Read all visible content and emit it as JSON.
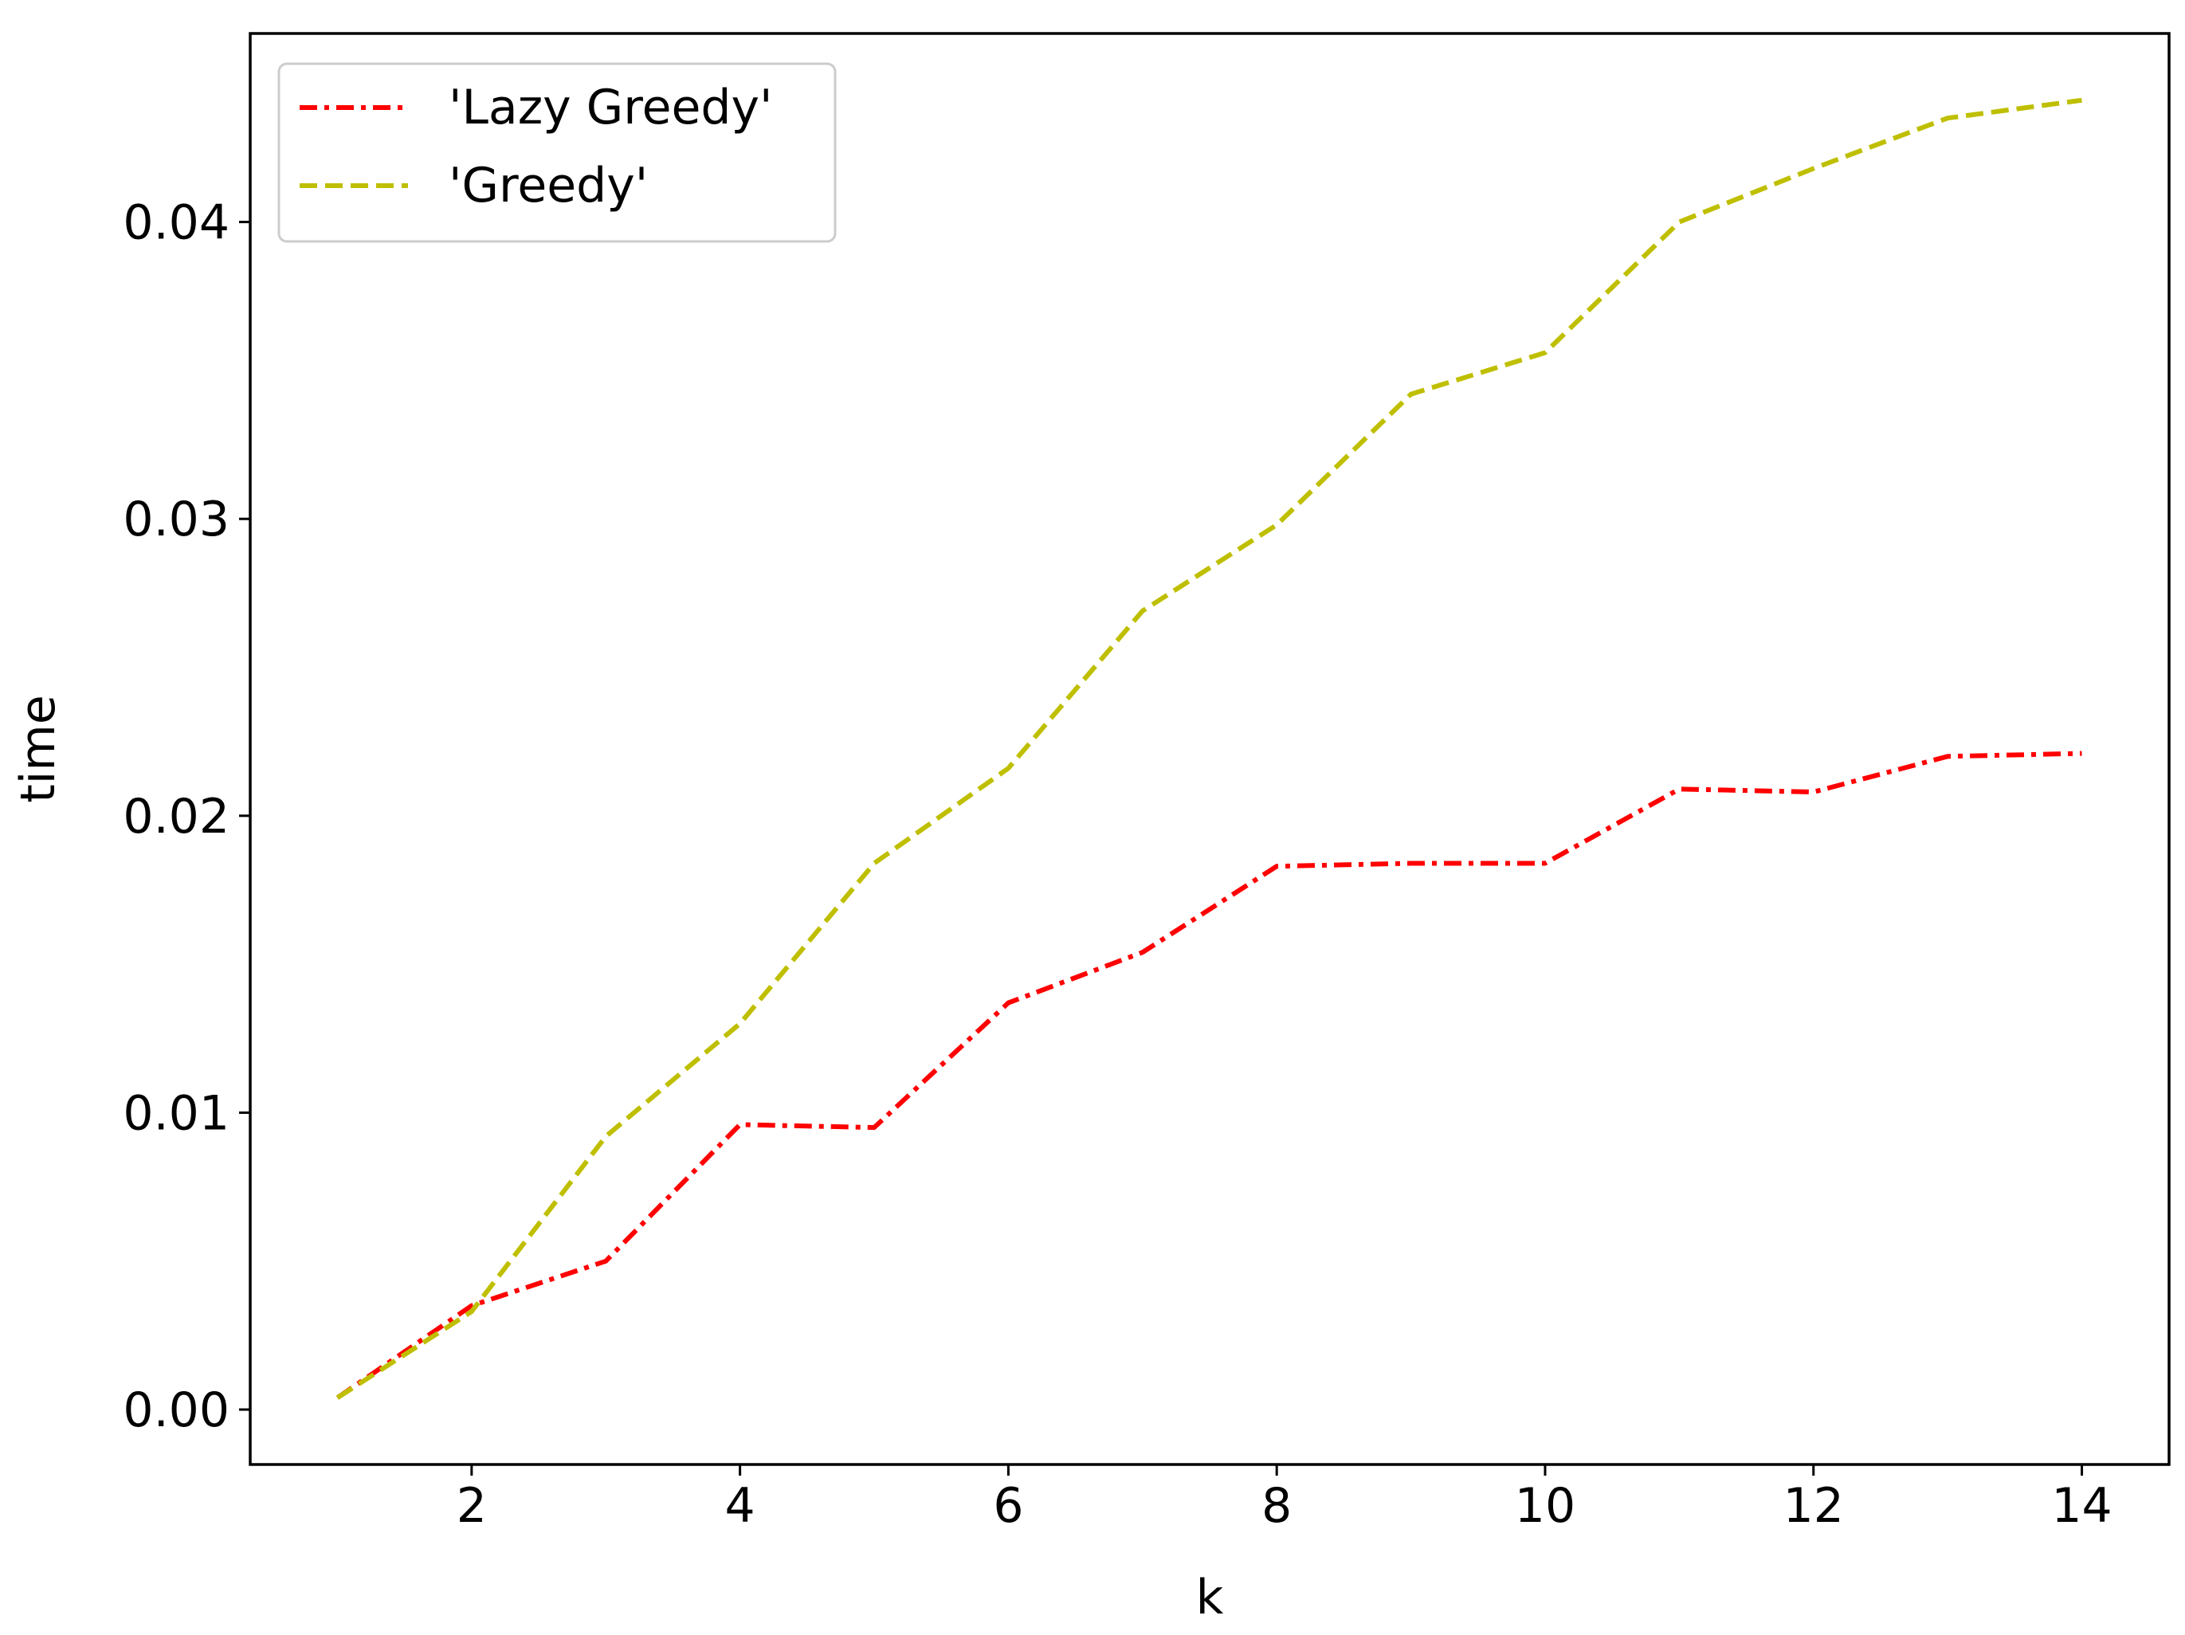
{
  "chart_data": {
    "type": "line",
    "title": "",
    "xlabel": "k",
    "ylabel": "time",
    "xlim": [
      0.35,
      14.65
    ],
    "ylim": [
      -0.00185,
      0.04635
    ],
    "xticks": [
      2,
      4,
      6,
      8,
      10,
      12,
      14
    ],
    "xtick_labels": [
      "2",
      "4",
      "6",
      "8",
      "10",
      "12",
      "14"
    ],
    "yticks": [
      0.0,
      0.01,
      0.02,
      0.03,
      0.04
    ],
    "ytick_labels": [
      "0.00",
      "0.01",
      "0.02",
      "0.03",
      "0.04"
    ],
    "grid": false,
    "legend_position": "top-left",
    "x": [
      1,
      2,
      3,
      4,
      5,
      6,
      7,
      8,
      9,
      10,
      11,
      12,
      13,
      14
    ],
    "series": [
      {
        "name": "'Lazy Greedy'",
        "color": "#ff0000",
        "line_style": "dash-dot",
        "values": [
          0.0004,
          0.0035,
          0.005,
          0.0096,
          0.0095,
          0.0137,
          0.0154,
          0.0183,
          0.0184,
          0.0184,
          0.0209,
          0.0208,
          0.022,
          0.0221
        ]
      },
      {
        "name": "'Greedy'",
        "color": "#bfbf00",
        "line_style": "dashed",
        "values": [
          0.0004,
          0.0033,
          0.0092,
          0.013,
          0.0184,
          0.0216,
          0.0269,
          0.0298,
          0.0342,
          0.0356,
          0.04,
          0.0418,
          0.0435,
          0.0441
        ]
      }
    ]
  }
}
